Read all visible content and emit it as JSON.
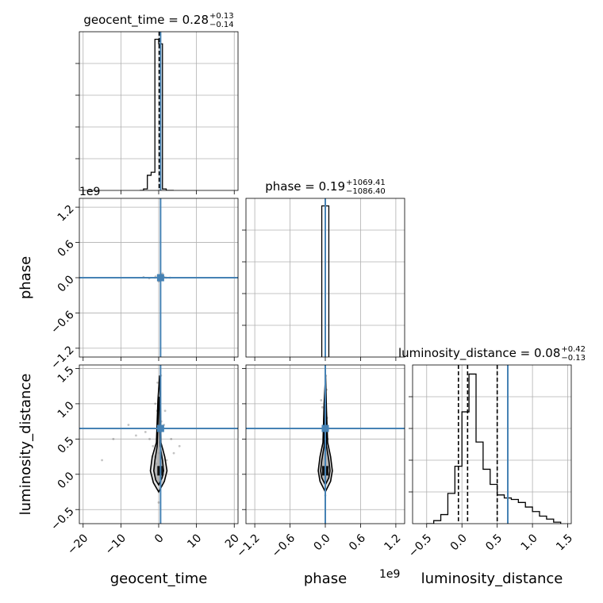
{
  "chart_data": {
    "type": "corner",
    "parameters": [
      "geocent_time",
      "phase",
      "luminosity_distance"
    ],
    "truth": {
      "geocent_time": 0.5,
      "phase": 0.0,
      "luminosity_distance": 0.65
    },
    "truth_color": "#4682b4",
    "line_color": "#000000",
    "axes": {
      "geocent_time": {
        "label": "geocent_time",
        "range": [
          -21,
          21
        ],
        "ticks": [
          -20,
          -10,
          0,
          10,
          20
        ],
        "tick_labels": [
          "−20",
          "−10",
          "0",
          "10",
          "20"
        ],
        "offset_text": ""
      },
      "phase": {
        "label": "phase",
        "range": [
          -1.35,
          1.35
        ],
        "ticks": [
          -1.2,
          -0.6,
          0.0,
          0.6,
          1.2
        ],
        "tick_labels": [
          "−1.2",
          "−0.6",
          "0.0",
          "0.6",
          "1.2"
        ],
        "offset_text": "1e9"
      },
      "luminosity_distance": {
        "label": "luminosity_distance",
        "range": [
          -0.7,
          1.55
        ],
        "ticks": [
          -0.5,
          0.0,
          0.5,
          1.0,
          1.5
        ],
        "tick_labels": [
          "−0.5",
          "0.0",
          "0.5",
          "1.0",
          "1.5"
        ],
        "offset_text": ""
      }
    },
    "marginals": [
      {
        "param": "geocent_time",
        "title_main": "geocent_time = 0.28",
        "title_plus": "+0.13",
        "title_minus": "−0.14",
        "quantile_lines": [
          0.14,
          0.28,
          0.41
        ],
        "hist_edges": [
          -5,
          -4,
          -3,
          -2,
          -1,
          0,
          1,
          2,
          3,
          4
        ],
        "hist_counts": [
          0,
          0.01,
          0.1,
          0.12,
          1.0,
          0.97,
          0.01,
          0,
          0
        ],
        "ymax": 1.05
      },
      {
        "param": "phase",
        "title_main": "phase = 0.19",
        "title_plus": "+1069.41",
        "title_minus": "−1086.40",
        "quantile_lines": [
          -1.1e-06,
          2e-10,
          1.1e-06
        ],
        "hist_edges": [
          -0.06,
          0.0,
          0.06
        ],
        "hist_counts": [
          1.0,
          1.0
        ],
        "ymax": 1.05
      },
      {
        "param": "luminosity_distance",
        "title_main": "luminosity_distance = 0.08",
        "title_plus": "+0.42",
        "title_minus": "−0.13",
        "quantile_lines": [
          -0.05,
          0.08,
          0.5
        ],
        "hist_edges": [
          -0.5,
          -0.4,
          -0.3,
          -0.2,
          -0.1,
          0.0,
          0.1,
          0.2,
          0.3,
          0.4,
          0.5,
          0.6,
          0.7,
          0.8,
          0.9,
          1.0,
          1.1,
          1.2,
          1.3,
          1.4
        ],
        "hist_counts": [
          0.0,
          0.02,
          0.06,
          0.2,
          0.38,
          0.74,
          0.99,
          0.54,
          0.36,
          0.26,
          0.19,
          0.17,
          0.16,
          0.14,
          0.11,
          0.08,
          0.05,
          0.03,
          0.01
        ],
        "ymax": 1.05
      }
    ],
    "joint_panels": [
      {
        "x": "geocent_time",
        "y": "phase",
        "points": [
          [
            0.2,
            0.0
          ],
          [
            0.6,
            0.01
          ],
          [
            -0.3,
            0.0
          ],
          [
            1.2,
            -0.01
          ],
          [
            0.8,
            0.02
          ],
          [
            -1.0,
            0.0
          ],
          [
            0.4,
            0.04
          ],
          [
            0.1,
            -0.03
          ],
          [
            2.0,
            0.0
          ],
          [
            -2.5,
            -0.01
          ],
          [
            0.7,
            0.05
          ],
          [
            0.3,
            -0.05
          ],
          [
            1.5,
            0.01
          ],
          [
            -0.8,
            0.02
          ],
          [
            0.5,
            0.0
          ],
          [
            3.0,
            0.0
          ],
          [
            -4.0,
            0.01
          ],
          [
            1.0,
            0.07
          ],
          [
            0.0,
            -0.06
          ],
          [
            0.9,
            0.0
          ]
        ],
        "contours": []
      },
      {
        "x": "geocent_time",
        "y": "luminosity_distance",
        "points": [
          [
            0.1,
            0.3
          ],
          [
            0.5,
            0.6
          ],
          [
            -0.4,
            0.9
          ],
          [
            0.2,
            1.2
          ],
          [
            0.8,
            0.1
          ],
          [
            -1.5,
            0.4
          ],
          [
            1.4,
            0.7
          ],
          [
            -0.9,
            1.0
          ],
          [
            0.3,
            -0.2
          ],
          [
            2.1,
            0.2
          ],
          [
            -2.4,
            0.5
          ],
          [
            0.6,
            1.4
          ],
          [
            -0.2,
            0.8
          ],
          [
            1.1,
            0.35
          ],
          [
            -3.5,
            0.6
          ],
          [
            4.0,
            0.3
          ],
          [
            0.0,
            0.0
          ],
          [
            -6.0,
            0.55
          ],
          [
            5.5,
            0.4
          ],
          [
            0.4,
            1.05
          ],
          [
            -0.6,
            0.15
          ],
          [
            1.7,
            0.9
          ],
          [
            -1.1,
            0.25
          ],
          [
            0.9,
            -0.1
          ],
          [
            -8.0,
            0.7
          ],
          [
            0.2,
            0.45
          ],
          [
            0.7,
            0.75
          ],
          [
            -0.3,
            1.3
          ],
          [
            3.3,
            0.5
          ],
          [
            -12.0,
            0.5
          ],
          [
            -15.0,
            0.2
          ],
          [
            0.0,
            -0.4
          ],
          [
            0.5,
            0.05
          ],
          [
            -0.1,
            0.6
          ]
        ],
        "contours": [
          [
            [
              0.0,
              -0.15
            ],
            [
              0.9,
              -0.05
            ],
            [
              1.3,
              0.05
            ],
            [
              1.0,
              0.2
            ],
            [
              0.4,
              0.4
            ],
            [
              0.3,
              0.8
            ],
            [
              0.2,
              1.1
            ],
            [
              -0.1,
              0.9
            ],
            [
              -0.4,
              0.4
            ],
            [
              -1.0,
              0.2
            ],
            [
              -1.3,
              0.05
            ],
            [
              -0.8,
              -0.08
            ],
            [
              0.0,
              -0.15
            ]
          ],
          [
            [
              0.0,
              -0.25
            ],
            [
              1.5,
              -0.1
            ],
            [
              2.2,
              0.05
            ],
            [
              1.6,
              0.25
            ],
            [
              0.6,
              0.45
            ],
            [
              0.5,
              0.9
            ],
            [
              0.25,
              1.4
            ],
            [
              -0.2,
              1.05
            ],
            [
              -0.6,
              0.45
            ],
            [
              -1.7,
              0.25
            ],
            [
              -2.2,
              0.05
            ],
            [
              -1.4,
              -0.12
            ],
            [
              0.0,
              -0.25
            ]
          ]
        ]
      },
      {
        "x": "phase",
        "y": "luminosity_distance",
        "points": [
          [
            0.0,
            0.3
          ],
          [
            0.01,
            0.6
          ],
          [
            -0.01,
            0.9
          ],
          [
            0.02,
            1.2
          ],
          [
            -0.02,
            0.1
          ],
          [
            0.04,
            0.5
          ],
          [
            0.0,
            1.0
          ],
          [
            0.0,
            0.0
          ],
          [
            0.03,
            0.8
          ],
          [
            -0.03,
            0.4
          ],
          [
            0.01,
            1.4
          ],
          [
            -0.05,
            0.95
          ],
          [
            0.0,
            -0.3
          ],
          [
            0.06,
            0.65
          ],
          [
            -0.07,
            1.05
          ],
          [
            0.02,
            -0.1
          ]
        ],
        "contours": [
          [
            [
              0.0,
              -0.15
            ],
            [
              0.06,
              -0.05
            ],
            [
              0.08,
              0.05
            ],
            [
              0.06,
              0.2
            ],
            [
              0.02,
              0.4
            ],
            [
              0.01,
              0.8
            ],
            [
              0.0,
              1.1
            ],
            [
              -0.01,
              0.8
            ],
            [
              -0.02,
              0.4
            ],
            [
              -0.06,
              0.2
            ],
            [
              -0.08,
              0.05
            ],
            [
              -0.06,
              -0.05
            ],
            [
              0.0,
              -0.15
            ]
          ],
          [
            [
              0.0,
              -0.25
            ],
            [
              0.09,
              -0.1
            ],
            [
              0.12,
              0.05
            ],
            [
              0.09,
              0.25
            ],
            [
              0.04,
              0.45
            ],
            [
              0.02,
              0.9
            ],
            [
              0.005,
              1.4
            ],
            [
              -0.02,
              1.0
            ],
            [
              -0.04,
              0.45
            ],
            [
              -0.09,
              0.25
            ],
            [
              -0.12,
              0.05
            ],
            [
              -0.09,
              -0.1
            ],
            [
              0.0,
              -0.25
            ]
          ]
        ]
      }
    ]
  }
}
